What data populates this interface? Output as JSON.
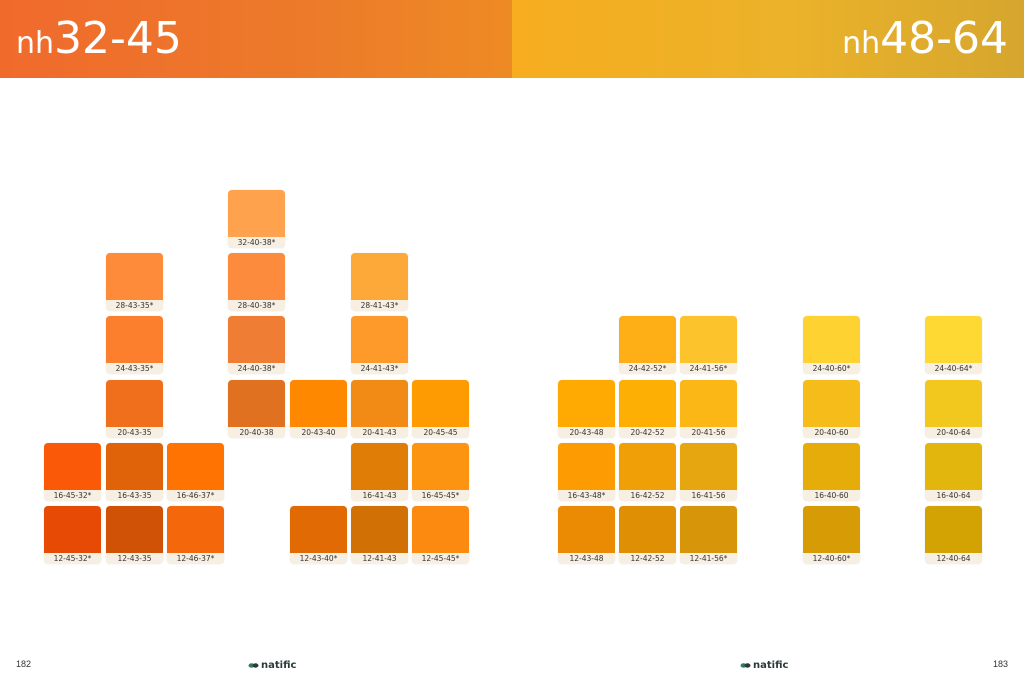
{
  "header": {
    "left": {
      "prefix": "nh",
      "range": "32-45"
    },
    "right": {
      "prefix": "nh",
      "range": "48-64"
    }
  },
  "footer": {
    "left_page": "182",
    "right_page": "183",
    "logo_text": "natific"
  },
  "chips": [
    {
      "id": "c1",
      "code": "32-40-38*",
      "color": "#fea24d"
    },
    {
      "id": "c2",
      "code": "28-43-35*",
      "color": "#fe8b3a"
    },
    {
      "id": "c3",
      "code": "28-40-38*",
      "color": "#fc8b3e"
    },
    {
      "id": "c4",
      "code": "28-41-43*",
      "color": "#fda93a"
    },
    {
      "id": "c5",
      "code": "24-43-35*",
      "color": "#fb7f2c"
    },
    {
      "id": "c6",
      "code": "24-40-38*",
      "color": "#ef7d33"
    },
    {
      "id": "c7",
      "code": "24-41-43*",
      "color": "#fd9a2a"
    },
    {
      "id": "c8",
      "code": "20-43-35",
      "color": "#f06f1d"
    },
    {
      "id": "c9",
      "code": "20-40-38",
      "color": "#df7121"
    },
    {
      "id": "c10",
      "code": "20-43-40",
      "color": "#fe8800"
    },
    {
      "id": "c11",
      "code": "20-41-43",
      "color": "#f28a16"
    },
    {
      "id": "c12",
      "code": "20-45-45",
      "color": "#ff9b02"
    },
    {
      "id": "c13",
      "code": "16-45-32*",
      "color": "#fa5908"
    },
    {
      "id": "c14",
      "code": "16-43-35",
      "color": "#e06209"
    },
    {
      "id": "c15",
      "code": "16-46-37*",
      "color": "#ff7303"
    },
    {
      "id": "c16",
      "code": "16-41-43",
      "color": "#e07d06"
    },
    {
      "id": "c17",
      "code": "16-45-45*",
      "color": "#fd9411"
    },
    {
      "id": "c18",
      "code": "12-45-32*",
      "color": "#e64a04"
    },
    {
      "id": "c19",
      "code": "12-43-35",
      "color": "#cf5206"
    },
    {
      "id": "c20",
      "code": "12-46-37*",
      "color": "#f4680b"
    },
    {
      "id": "c21",
      "code": "12-43-40*",
      "color": "#e16a04"
    },
    {
      "id": "c22",
      "code": "12-41-43",
      "color": "#d17004"
    },
    {
      "id": "c23",
      "code": "12-45-45*",
      "color": "#fc8910"
    },
    {
      "id": "c24",
      "code": "24-42-52*",
      "color": "#fdaf15"
    },
    {
      "id": "c25",
      "code": "24-41-56*",
      "color": "#fdc32c"
    },
    {
      "id": "c26",
      "code": "24-40-60*",
      "color": "#fed331"
    },
    {
      "id": "c27",
      "code": "24-40-64*",
      "color": "#fed933"
    },
    {
      "id": "c28",
      "code": "20-43-48",
      "color": "#ffaa03"
    },
    {
      "id": "c29",
      "code": "20-42-52",
      "color": "#feaf03"
    },
    {
      "id": "c30",
      "code": "20-41-56",
      "color": "#fab716"
    },
    {
      "id": "c31",
      "code": "20-40-60",
      "color": "#f6bd1a"
    },
    {
      "id": "c32",
      "code": "20-40-64",
      "color": "#f2c71e"
    },
    {
      "id": "c33",
      "code": "16-43-48*",
      "color": "#fd9b03"
    },
    {
      "id": "c34",
      "code": "16-42-52",
      "color": "#f19f06"
    },
    {
      "id": "c35",
      "code": "16-41-56",
      "color": "#e6a610"
    },
    {
      "id": "c36",
      "code": "16-40-60",
      "color": "#e6ad0a"
    },
    {
      "id": "c37",
      "code": "16-40-64",
      "color": "#e2b60c"
    },
    {
      "id": "c38",
      "code": "12-43-48",
      "color": "#ea8b03"
    },
    {
      "id": "c39",
      "code": "12-42-52",
      "color": "#df8f04"
    },
    {
      "id": "c40",
      "code": "12-41-56*",
      "color": "#d7960a"
    },
    {
      "id": "c41",
      "code": "12-40-60*",
      "color": "#d69b05"
    },
    {
      "id": "c42",
      "code": "12-40-64",
      "color": "#d3a303"
    }
  ]
}
